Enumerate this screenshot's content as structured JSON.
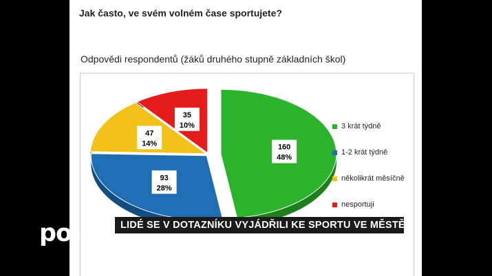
{
  "slide": {
    "question": "Jak často, ve svém volném čase sportujete?",
    "subtitle": "Odpovědi respondentů (žáků druhého stupně základních škol)"
  },
  "overlay": {
    "logo": "polar",
    "ticker": "LIDÉ SE V DOTAZNÍKU VYJÁDŘILI KE SPORTU VE MĚSTĚ"
  },
  "chart_data": {
    "type": "pie",
    "categories": [
      "3 krát týdně",
      "1-2 krát týdně",
      "několikrát měsíčně",
      "nesportuji"
    ],
    "values": [
      160,
      93,
      47,
      35
    ],
    "percent_labels": [
      "48%",
      "28%",
      "14%",
      "10%"
    ],
    "colors": [
      "#2bb32b",
      "#1f6db3",
      "#f2c21b",
      "#e51c1c"
    ],
    "side_colors": [
      "#1d801d",
      "#134e82",
      "#b38d0c",
      "#a41010"
    ],
    "exploded": [
      "3 krát týdně"
    ],
    "legend_position": "right",
    "title": ""
  }
}
